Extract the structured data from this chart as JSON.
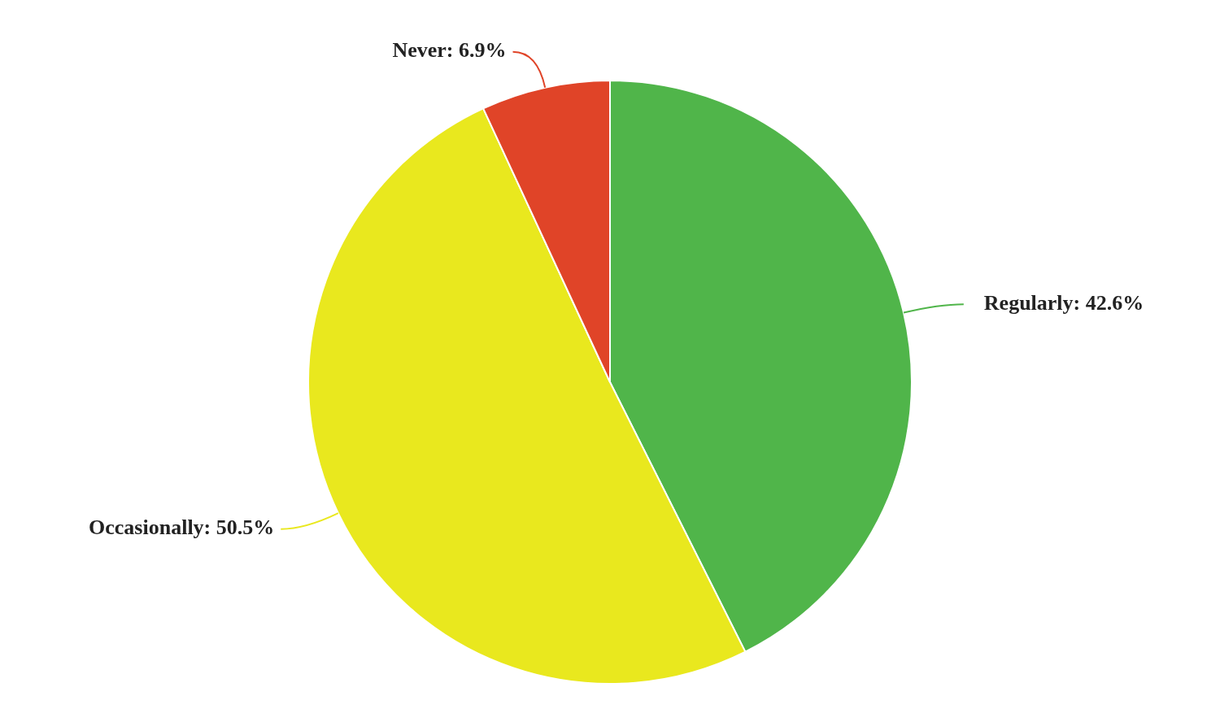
{
  "chart_data": {
    "type": "pie",
    "categories": [
      "Regularly",
      "Occasionally",
      "Never"
    ],
    "values": [
      42.6,
      50.5,
      6.9
    ],
    "value_labels": [
      "42.6%",
      "50.5%",
      "6.9%"
    ],
    "colors": [
      "#50b54a",
      "#e9e81e",
      "#e04428"
    ],
    "legend": false
  }
}
